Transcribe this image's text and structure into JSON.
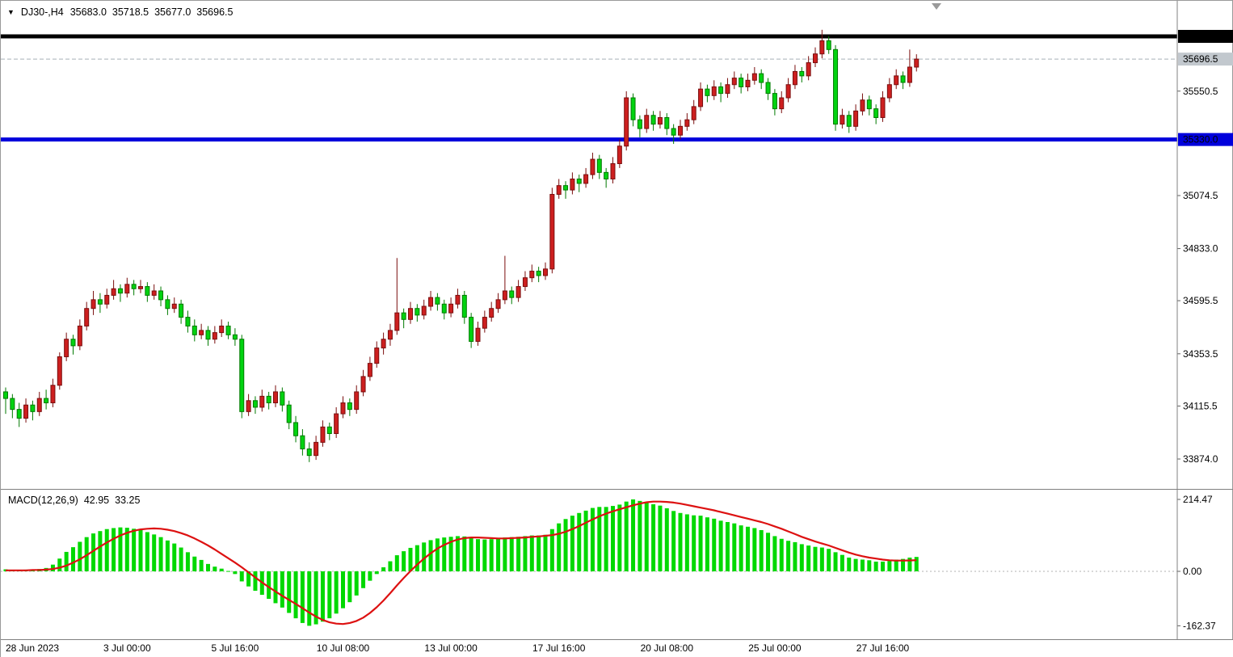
{
  "header": {
    "menu_icon": "▼",
    "symbol_timeframe": "DJ30-,H4",
    "open": "35683.0",
    "high": "35718.5",
    "low": "35677.0",
    "close": "35696.5"
  },
  "macd_info": {
    "label": "MACD(12,26,9)",
    "main_value": "42.95",
    "signal_value": "33.25"
  },
  "chart_data": {
    "type": "candlestick",
    "title": "DJ30- H4 candlestick chart with MACD(12,26,9)",
    "symbol": "DJ30-",
    "timeframe": "H4",
    "legend_position": "none",
    "grid": false,
    "colors": {
      "bull": "#cd1f1f",
      "bull_border": "#7a0e0e",
      "bear": "#00d310",
      "bear_border": "#007a00",
      "hist": "#00d800",
      "signal": "#dd1111",
      "axis_line": "#808080",
      "current_line": "#a8b0b8",
      "current_box": "#c2c8ce"
    },
    "price_axis": {
      "ticks": [
        {
          "value": 35550.5,
          "label": "35550.5"
        },
        {
          "value": 35074.5,
          "label": "35074.5"
        },
        {
          "value": 34833.0,
          "label": "34833.0"
        },
        {
          "value": 34595.5,
          "label": "34595.5"
        },
        {
          "value": 34353.5,
          "label": "34353.5"
        },
        {
          "value": 34115.5,
          "label": "34115.5"
        },
        {
          "value": 33874.0,
          "label": "33874.0"
        }
      ],
      "lines": [
        {
          "value": 35800.0,
          "label": "35800.0",
          "color": "#000000",
          "text_color": "#ffffff",
          "width": 5,
          "style": "solid",
          "name": "resistance-line"
        },
        {
          "value": 35330.0,
          "label": "35330.0",
          "color": "#0000dc",
          "text_color": "#ffffff",
          "width": 5,
          "style": "solid",
          "name": "support-line"
        },
        {
          "value": 35696.5,
          "label": "35696.5",
          "color": "#a8b0b8",
          "text_color": "#000000",
          "width": 1,
          "style": "dash",
          "name": "current-price-line"
        }
      ]
    },
    "time_labels": [
      {
        "index": 0,
        "label": "28 Jun 2023"
      },
      {
        "index": 18,
        "label": "3 Jul 00:00"
      },
      {
        "index": 34,
        "label": "5 Jul 16:00"
      },
      {
        "index": 50,
        "label": "10 Jul 08:00"
      },
      {
        "index": 66,
        "label": "13 Jul 00:00"
      },
      {
        "index": 82,
        "label": "17 Jul 16:00"
      },
      {
        "index": 98,
        "label": "20 Jul 08:00"
      },
      {
        "index": 114,
        "label": "25 Jul 00:00"
      },
      {
        "index": 130,
        "label": "27 Jul 16:00"
      }
    ],
    "candles": [
      [
        34180,
        34200,
        34080,
        34150
      ],
      [
        34150,
        34170,
        34060,
        34100
      ],
      [
        34100,
        34130,
        34020,
        34060
      ],
      [
        34060,
        34150,
        34040,
        34120
      ],
      [
        34120,
        34140,
        34050,
        34090
      ],
      [
        34090,
        34180,
        34070,
        34150
      ],
      [
        34150,
        34190,
        34100,
        34130
      ],
      [
        34130,
        34240,
        34110,
        34210
      ],
      [
        34210,
        34360,
        34190,
        34340
      ],
      [
        34340,
        34450,
        34320,
        34420
      ],
      [
        34420,
        34440,
        34350,
        34390
      ],
      [
        34390,
        34510,
        34370,
        34480
      ],
      [
        34480,
        34590,
        34460,
        34560
      ],
      [
        34560,
        34640,
        34530,
        34600
      ],
      [
        34600,
        34630,
        34540,
        34580
      ],
      [
        34580,
        34650,
        34560,
        34620
      ],
      [
        34620,
        34690,
        34600,
        34650
      ],
      [
        34650,
        34670,
        34590,
        34630
      ],
      [
        34630,
        34700,
        34610,
        34670
      ],
      [
        34670,
        34690,
        34620,
        34650
      ],
      [
        34650,
        34690,
        34630,
        34660
      ],
      [
        34660,
        34680,
        34590,
        34620
      ],
      [
        34620,
        34670,
        34600,
        34640
      ],
      [
        34640,
        34660,
        34570,
        34600
      ],
      [
        34600,
        34620,
        34530,
        34560
      ],
      [
        34560,
        34610,
        34540,
        34580
      ],
      [
        34580,
        34600,
        34490,
        34520
      ],
      [
        34520,
        34550,
        34450,
        34480
      ],
      [
        34480,
        34510,
        34410,
        34440
      ],
      [
        34440,
        34490,
        34420,
        34460
      ],
      [
        34460,
        34480,
        34390,
        34420
      ],
      [
        34420,
        34480,
        34400,
        34450
      ],
      [
        34450,
        34510,
        34430,
        34480
      ],
      [
        34480,
        34500,
        34420,
        34440
      ],
      [
        34440,
        34470,
        34390,
        34420
      ],
      [
        34420,
        34440,
        34060,
        34090
      ],
      [
        34090,
        34170,
        34070,
        34140
      ],
      [
        34140,
        34160,
        34080,
        34110
      ],
      [
        34110,
        34190,
        34090,
        34160
      ],
      [
        34160,
        34180,
        34100,
        34130
      ],
      [
        34130,
        34210,
        34110,
        34180
      ],
      [
        34180,
        34200,
        34090,
        34120
      ],
      [
        34120,
        34140,
        34010,
        34040
      ],
      [
        34040,
        34070,
        33950,
        33980
      ],
      [
        33980,
        34010,
        33890,
        33920
      ],
      [
        33920,
        33950,
        33860,
        33890
      ],
      [
        33890,
        33980,
        33870,
        33950
      ],
      [
        33950,
        34050,
        33930,
        34020
      ],
      [
        34020,
        34040,
        33960,
        33990
      ],
      [
        33990,
        34110,
        33970,
        34080
      ],
      [
        34080,
        34160,
        34060,
        34130
      ],
      [
        34130,
        34150,
        34070,
        34100
      ],
      [
        34100,
        34210,
        34080,
        34180
      ],
      [
        34180,
        34280,
        34160,
        34250
      ],
      [
        34250,
        34340,
        34230,
        34310
      ],
      [
        34310,
        34410,
        34290,
        34380
      ],
      [
        34380,
        34450,
        34350,
        34420
      ],
      [
        34420,
        34490,
        34390,
        34460
      ],
      [
        34460,
        34790,
        34440,
        34540
      ],
      [
        34540,
        34560,
        34470,
        34510
      ],
      [
        34510,
        34590,
        34490,
        34560
      ],
      [
        34560,
        34580,
        34500,
        34530
      ],
      [
        34530,
        34600,
        34510,
        34570
      ],
      [
        34570,
        34640,
        34550,
        34610
      ],
      [
        34610,
        34630,
        34550,
        34580
      ],
      [
        34580,
        34600,
        34510,
        34540
      ],
      [
        34540,
        34610,
        34520,
        34580
      ],
      [
        34580,
        34650,
        34560,
        34620
      ],
      [
        34620,
        34640,
        34490,
        34520
      ],
      [
        34520,
        34540,
        34380,
        34410
      ],
      [
        34410,
        34500,
        34390,
        34470
      ],
      [
        34470,
        34550,
        34450,
        34520
      ],
      [
        34520,
        34590,
        34500,
        34560
      ],
      [
        34560,
        34630,
        34540,
        34600
      ],
      [
        34600,
        34800,
        34580,
        34640
      ],
      [
        34640,
        34660,
        34580,
        34610
      ],
      [
        34610,
        34690,
        34590,
        34660
      ],
      [
        34660,
        34730,
        34640,
        34700
      ],
      [
        34700,
        34760,
        34680,
        34730
      ],
      [
        34730,
        34750,
        34680,
        34710
      ],
      [
        34710,
        34770,
        34690,
        34740
      ],
      [
        34740,
        35110,
        34720,
        35080
      ],
      [
        35080,
        35150,
        35060,
        35120
      ],
      [
        35120,
        35140,
        35060,
        35100
      ],
      [
        35100,
        35180,
        35080,
        35150
      ],
      [
        35150,
        35170,
        35090,
        35130
      ],
      [
        35130,
        35200,
        35110,
        35170
      ],
      [
        35170,
        35270,
        35150,
        35240
      ],
      [
        35240,
        35260,
        35150,
        35180
      ],
      [
        35180,
        35200,
        35110,
        35150
      ],
      [
        35150,
        35250,
        35130,
        35220
      ],
      [
        35220,
        35330,
        35200,
        35300
      ],
      [
        35300,
        35550,
        35280,
        35520
      ],
      [
        35520,
        35540,
        35390,
        35420
      ],
      [
        35420,
        35440,
        35340,
        35380
      ],
      [
        35380,
        35470,
        35360,
        35440
      ],
      [
        35440,
        35460,
        35370,
        35400
      ],
      [
        35400,
        35460,
        35380,
        35430
      ],
      [
        35430,
        35450,
        35350,
        35380
      ],
      [
        35380,
        35400,
        35310,
        35350
      ],
      [
        35350,
        35420,
        35330,
        35390
      ],
      [
        35390,
        35450,
        35370,
        35420
      ],
      [
        35420,
        35510,
        35400,
        35480
      ],
      [
        35480,
        35590,
        35460,
        35560
      ],
      [
        35560,
        35580,
        35500,
        35530
      ],
      [
        35530,
        35600,
        35510,
        35570
      ],
      [
        35570,
        35590,
        35500,
        35540
      ],
      [
        35540,
        35610,
        35520,
        35580
      ],
      [
        35580,
        35640,
        35560,
        35610
      ],
      [
        35610,
        35630,
        35540,
        35570
      ],
      [
        35570,
        35630,
        35550,
        35600
      ],
      [
        35600,
        35660,
        35580,
        35630
      ],
      [
        35630,
        35650,
        35560,
        35590
      ],
      [
        35590,
        35610,
        35510,
        35540
      ],
      [
        35540,
        35560,
        35440,
        35470
      ],
      [
        35470,
        35550,
        35450,
        35520
      ],
      [
        35520,
        35610,
        35500,
        35580
      ],
      [
        35580,
        35670,
        35560,
        35640
      ],
      [
        35640,
        35660,
        35590,
        35620
      ],
      [
        35620,
        35710,
        35600,
        35680
      ],
      [
        35680,
        35750,
        35660,
        35720
      ],
      [
        35720,
        35830,
        35700,
        35780
      ],
      [
        35780,
        35800,
        35720,
        35740
      ],
      [
        35740,
        35760,
        35370,
        35400
      ],
      [
        35400,
        35470,
        35380,
        35440
      ],
      [
        35440,
        35460,
        35360,
        35390
      ],
      [
        35390,
        35490,
        35370,
        35460
      ],
      [
        35460,
        35540,
        35440,
        35510
      ],
      [
        35510,
        35530,
        35440,
        35470
      ],
      [
        35470,
        35490,
        35400,
        35430
      ],
      [
        35430,
        35550,
        35410,
        35520
      ],
      [
        35520,
        35610,
        35500,
        35580
      ],
      [
        35580,
        35650,
        35560,
        35620
      ],
      [
        35620,
        35640,
        35560,
        35590
      ],
      [
        35590,
        35740,
        35570,
        35660
      ],
      [
        35660,
        35718.5,
        35640,
        35696.5
      ]
    ],
    "macd": {
      "axis": [
        {
          "value": 214.47,
          "label": "214.47"
        },
        {
          "value": 0,
          "label": "0.00"
        },
        {
          "value": -162.37,
          "label": "-162.37"
        }
      ],
      "histogram": [
        6,
        4,
        3,
        5,
        4,
        7,
        10,
        20,
        38,
        58,
        72,
        88,
        102,
        113,
        120,
        126,
        129,
        131,
        130,
        127,
        123,
        117,
        110,
        102,
        92,
        83,
        71,
        57,
        44,
        34,
        22,
        14,
        8,
        1,
        -8,
        -30,
        -45,
        -58,
        -70,
        -82,
        -95,
        -108,
        -124,
        -140,
        -154,
        -162.37,
        -158,
        -150,
        -140,
        -126,
        -110,
        -92,
        -72,
        -50,
        -28,
        -8,
        12,
        30,
        48,
        60,
        70,
        78,
        86,
        93,
        98,
        101,
        103,
        105,
        104,
        99,
        96,
        95,
        96,
        98,
        101,
        102,
        103,
        105,
        107,
        107,
        109,
        126,
        143,
        156,
        166,
        174,
        181,
        189,
        192,
        192,
        195,
        199,
        208,
        214.47,
        210,
        206,
        200,
        196,
        188,
        180,
        174,
        170,
        167,
        166,
        161,
        157,
        151,
        147,
        143,
        137,
        133,
        129,
        123,
        115,
        105,
        97,
        91,
        87,
        81,
        77,
        73,
        71,
        67,
        57,
        49,
        41,
        37,
        35,
        33,
        29,
        29,
        31,
        35,
        37,
        41,
        42.95
      ],
      "signal": [
        3,
        3,
        3,
        3,
        4,
        4,
        5,
        7,
        11,
        17,
        26,
        36,
        48,
        61,
        74,
        86,
        97,
        107,
        115,
        121,
        125,
        127,
        128,
        127,
        124,
        120,
        114,
        107,
        98,
        88,
        77,
        65,
        52,
        39,
        26,
        12,
        -3,
        -18,
        -33,
        -47,
        -60,
        -73,
        -85,
        -97,
        -110,
        -123,
        -135,
        -145,
        -152,
        -156,
        -157,
        -154,
        -148,
        -138,
        -124,
        -107,
        -87,
        -65,
        -42,
        -20,
        1,
        20,
        38,
        54,
        68,
        79,
        88,
        95,
        99,
        101,
        101,
        100,
        99,
        98,
        98,
        99,
        100,
        101,
        103,
        104,
        106,
        108,
        112,
        118,
        126,
        135,
        145,
        155,
        164,
        172,
        179,
        185,
        191,
        197,
        202,
        206,
        208,
        208,
        207,
        205,
        202,
        198,
        194,
        190,
        186,
        182,
        177,
        172,
        167,
        162,
        157,
        152,
        147,
        141,
        134,
        127,
        119,
        111,
        103,
        96,
        89,
        83,
        77,
        70,
        63,
        56,
        50,
        45,
        41,
        38,
        35,
        33,
        32,
        32,
        32.5,
        33.25
      ]
    }
  }
}
